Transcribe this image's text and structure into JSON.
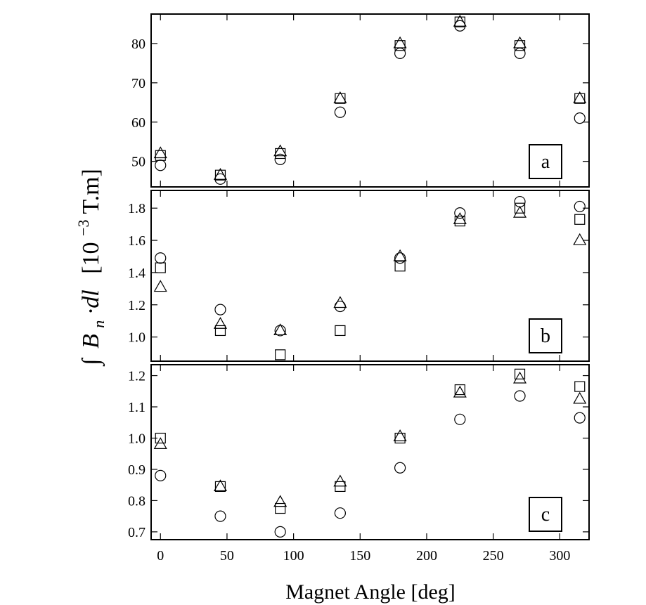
{
  "chart_data": {
    "type": "scatter",
    "xlabel": "Magnet Angle [deg]",
    "ylabel": {
      "integral": "∫",
      "B": "B",
      "sub": "n",
      "dot_dl": "·dl",
      "units_pre": "[10",
      "exp": "−3",
      "units_post": " T.m]"
    },
    "x": [
      0,
      45,
      90,
      135,
      180,
      225,
      270,
      315
    ],
    "xlim": [
      -7,
      322
    ],
    "xticks": [
      0,
      50,
      100,
      150,
      200,
      250,
      300
    ],
    "panels": [
      {
        "label": "a",
        "ylim": [
          43.5,
          87.5
        ],
        "yticks": [
          50,
          60,
          70,
          80
        ],
        "series": [
          {
            "marker": "circle",
            "values": [
              49.0,
              45.5,
              50.5,
              62.5,
              77.5,
              84.5,
              77.5,
              61.0
            ]
          },
          {
            "marker": "square",
            "values": [
              51.5,
              46.5,
              52.0,
              66.0,
              79.5,
              85.5,
              79.5,
              66.0
            ]
          },
          {
            "marker": "triangle",
            "values": [
              52.0,
              46.5,
              52.5,
              66.0,
              80.0,
              85.5,
              80.0,
              66.0
            ]
          }
        ]
      },
      {
        "label": "b",
        "ylim": [
          0.85,
          1.91
        ],
        "yticks": [
          1.0,
          1.2,
          1.4,
          1.6,
          1.8
        ],
        "series": [
          {
            "marker": "circle",
            "values": [
              1.49,
              1.17,
              1.04,
              1.19,
              1.49,
              1.77,
              1.84,
              1.81
            ]
          },
          {
            "marker": "square",
            "values": [
              1.43,
              1.04,
              0.89,
              1.04,
              1.44,
              1.72,
              1.8,
              1.73
            ]
          },
          {
            "marker": "triangle",
            "values": [
              1.31,
              1.08,
              1.04,
              1.21,
              1.5,
              1.73,
              1.77,
              1.6
            ]
          }
        ]
      },
      {
        "label": "c",
        "ylim": [
          0.675,
          1.235
        ],
        "yticks": [
          0.7,
          0.8,
          0.9,
          1.0,
          1.1,
          1.2
        ],
        "series": [
          {
            "marker": "circle",
            "values": [
              0.88,
              0.75,
              0.7,
              0.76,
              0.905,
              1.06,
              1.135,
              1.065
            ]
          },
          {
            "marker": "square",
            "values": [
              1.0,
              0.845,
              0.775,
              0.845,
              1.0,
              1.155,
              1.205,
              1.165
            ]
          },
          {
            "marker": "triangle",
            "values": [
              0.98,
              0.845,
              0.795,
              0.86,
              1.005,
              1.145,
              1.19,
              1.125
            ]
          }
        ]
      }
    ]
  },
  "colors": {
    "marker_stroke": "#000000",
    "axis": "#000000",
    "background": "#ffffff"
  }
}
